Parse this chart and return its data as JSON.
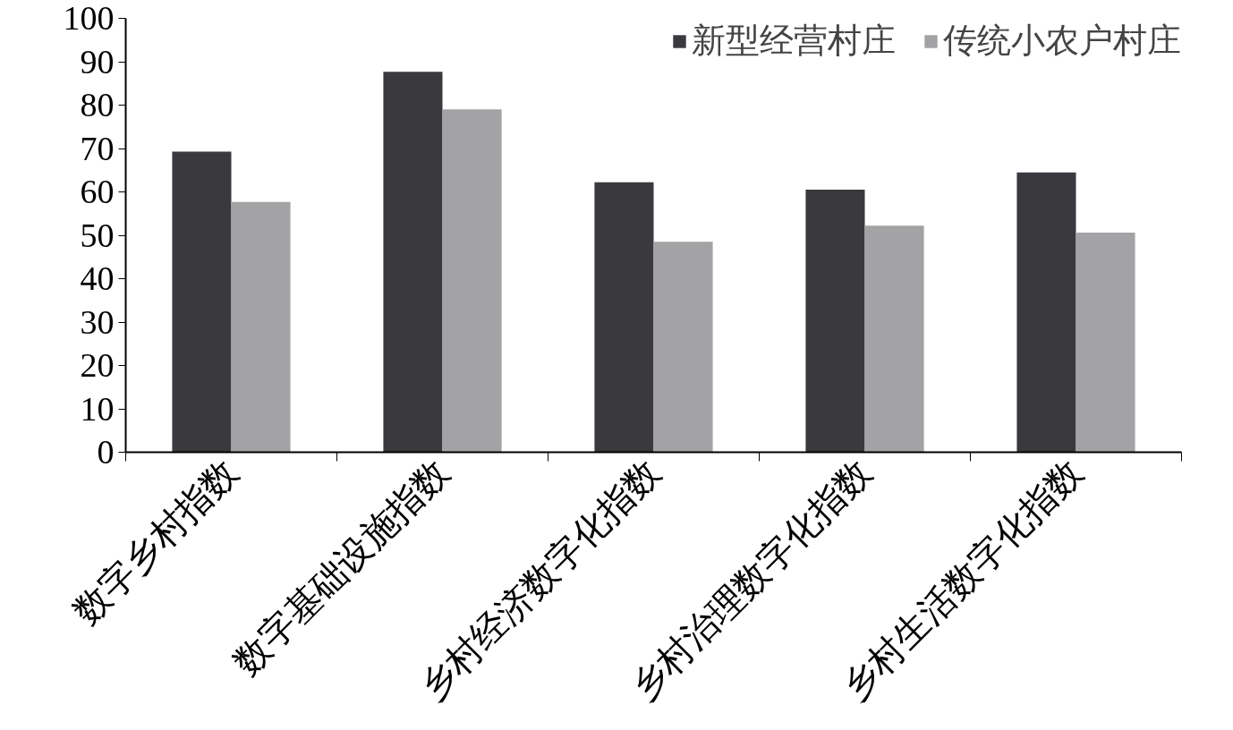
{
  "chart_data": {
    "type": "bar",
    "categories": [
      "数字乡村指数",
      "数字基础设施指数",
      "乡村经济数字化指数",
      "乡村治理数字化指数",
      "乡村生活数字化指数"
    ],
    "series": [
      {
        "name": "新型经营村庄",
        "color": "#3a3a3e",
        "values": [
          69.3,
          87.7,
          62.2,
          60.5,
          64.5
        ]
      },
      {
        "name": "传统小农户村庄",
        "color": "#a3a3a6",
        "values": [
          57.7,
          79.0,
          48.5,
          52.2,
          50.6
        ]
      }
    ],
    "ylim": [
      0,
      100
    ],
    "yticks": [
      0,
      10,
      20,
      30,
      40,
      50,
      60,
      70,
      80,
      90,
      100
    ],
    "grid": false,
    "legend": "top right"
  }
}
